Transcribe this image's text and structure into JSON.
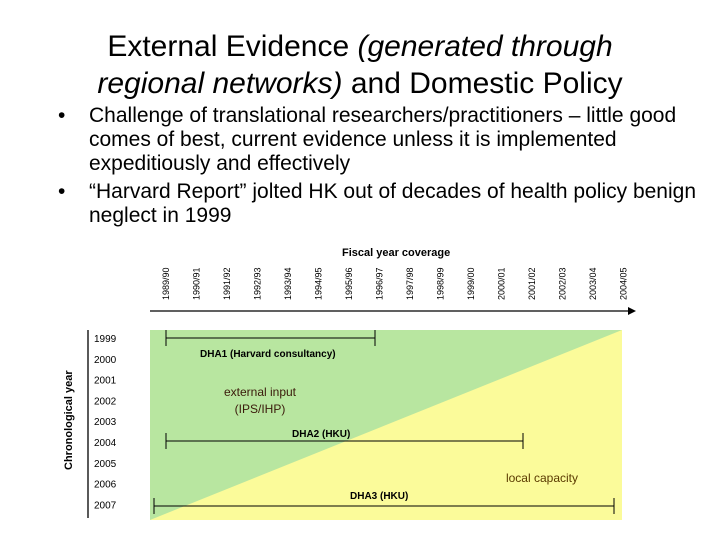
{
  "title": {
    "line1_regular": "External Evidence ",
    "line1_italic": "(generated through",
    "line2_italic": "regional networks)",
    "line2_regular": " and Domestic Policy"
  },
  "bullets": [
    {
      "marker": "•",
      "text": "Challenge of translational researchers/practitioners – little good comes of best, current evidence unless it is implemented expeditiously and effectively"
    },
    {
      "marker": "•",
      "text": "“Harvard Report” jolted HK out of decades of health policy benign neglect in 1999"
    }
  ],
  "diagram": {
    "x_axis_title": "Fiscal year coverage",
    "y_axis_title": "Chronological year",
    "fiscal_years": [
      "1989/90",
      "1990/91",
      "1991/92",
      "1992/93",
      "1993/94",
      "1994/95",
      "1995/96",
      "1996/97",
      "1997/98",
      "1998/99",
      "1999/00",
      "2000/01",
      "2001/02",
      "2002/03",
      "2003/04",
      "2004/05"
    ],
    "chronological_years": [
      "1999",
      "2000",
      "2001",
      "2002",
      "2003",
      "2004",
      "2005",
      "2006",
      "2007"
    ],
    "region_labels": {
      "external_line1": "external input",
      "external_line2": "(IPS/IHP)",
      "local": "local capacity"
    },
    "region_colors": {
      "external": "#b8e6a0",
      "local": "#fbfb9a",
      "external_text": "#3a1a0a",
      "local_text": "#5a3a00"
    },
    "projects": [
      {
        "label": "DHA1 (Harvard consultancy)"
      },
      {
        "label": "DHA2 (HKU)"
      },
      {
        "label": "DHA3 (HKU)"
      }
    ]
  }
}
